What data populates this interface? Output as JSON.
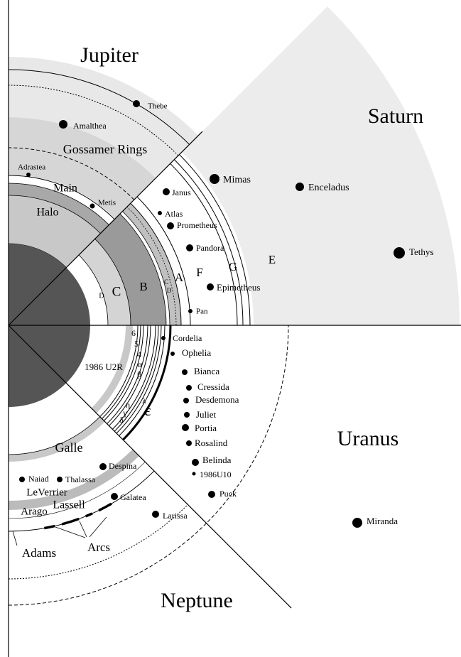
{
  "jupiter": {
    "name": "Jupiter",
    "rings": [
      "Gossamer Rings",
      "Main",
      "Halo"
    ],
    "moons": [
      "Thebe",
      "Amalthea",
      "Adrastea",
      "Metis"
    ]
  },
  "saturn": {
    "name": "Saturn",
    "rings": [
      "D",
      "C",
      "B",
      "C",
      "D",
      "A",
      "F",
      "G",
      "E"
    ],
    "moons": [
      "Mimas",
      "Enceladus",
      "Janus",
      "Atlas",
      "Prometheus",
      "Pandora",
      "Epimetheus",
      "Pan",
      "Tethys"
    ]
  },
  "uranus": {
    "name": "Uranus",
    "rings": [
      "6",
      "5",
      "4",
      "α",
      "β",
      "η",
      "γ",
      "δ",
      "λ",
      "ε",
      "1986 U2R"
    ],
    "moons": [
      "Cordelia",
      "Ophelia",
      "Bianca",
      "Cressida",
      "Desdemona",
      "Juliet",
      "Portia",
      "Rosalind",
      "Belinda",
      "1986U10",
      "Puck",
      "Miranda"
    ]
  },
  "neptune": {
    "name": "Neptune",
    "rings": [
      "Galle",
      "LeVerrier",
      "Lassell",
      "Arago",
      "Adams",
      "Arcs"
    ],
    "moons": [
      "Naiad",
      "Thalassa",
      "Despina",
      "Galatea",
      "Larissa"
    ]
  }
}
